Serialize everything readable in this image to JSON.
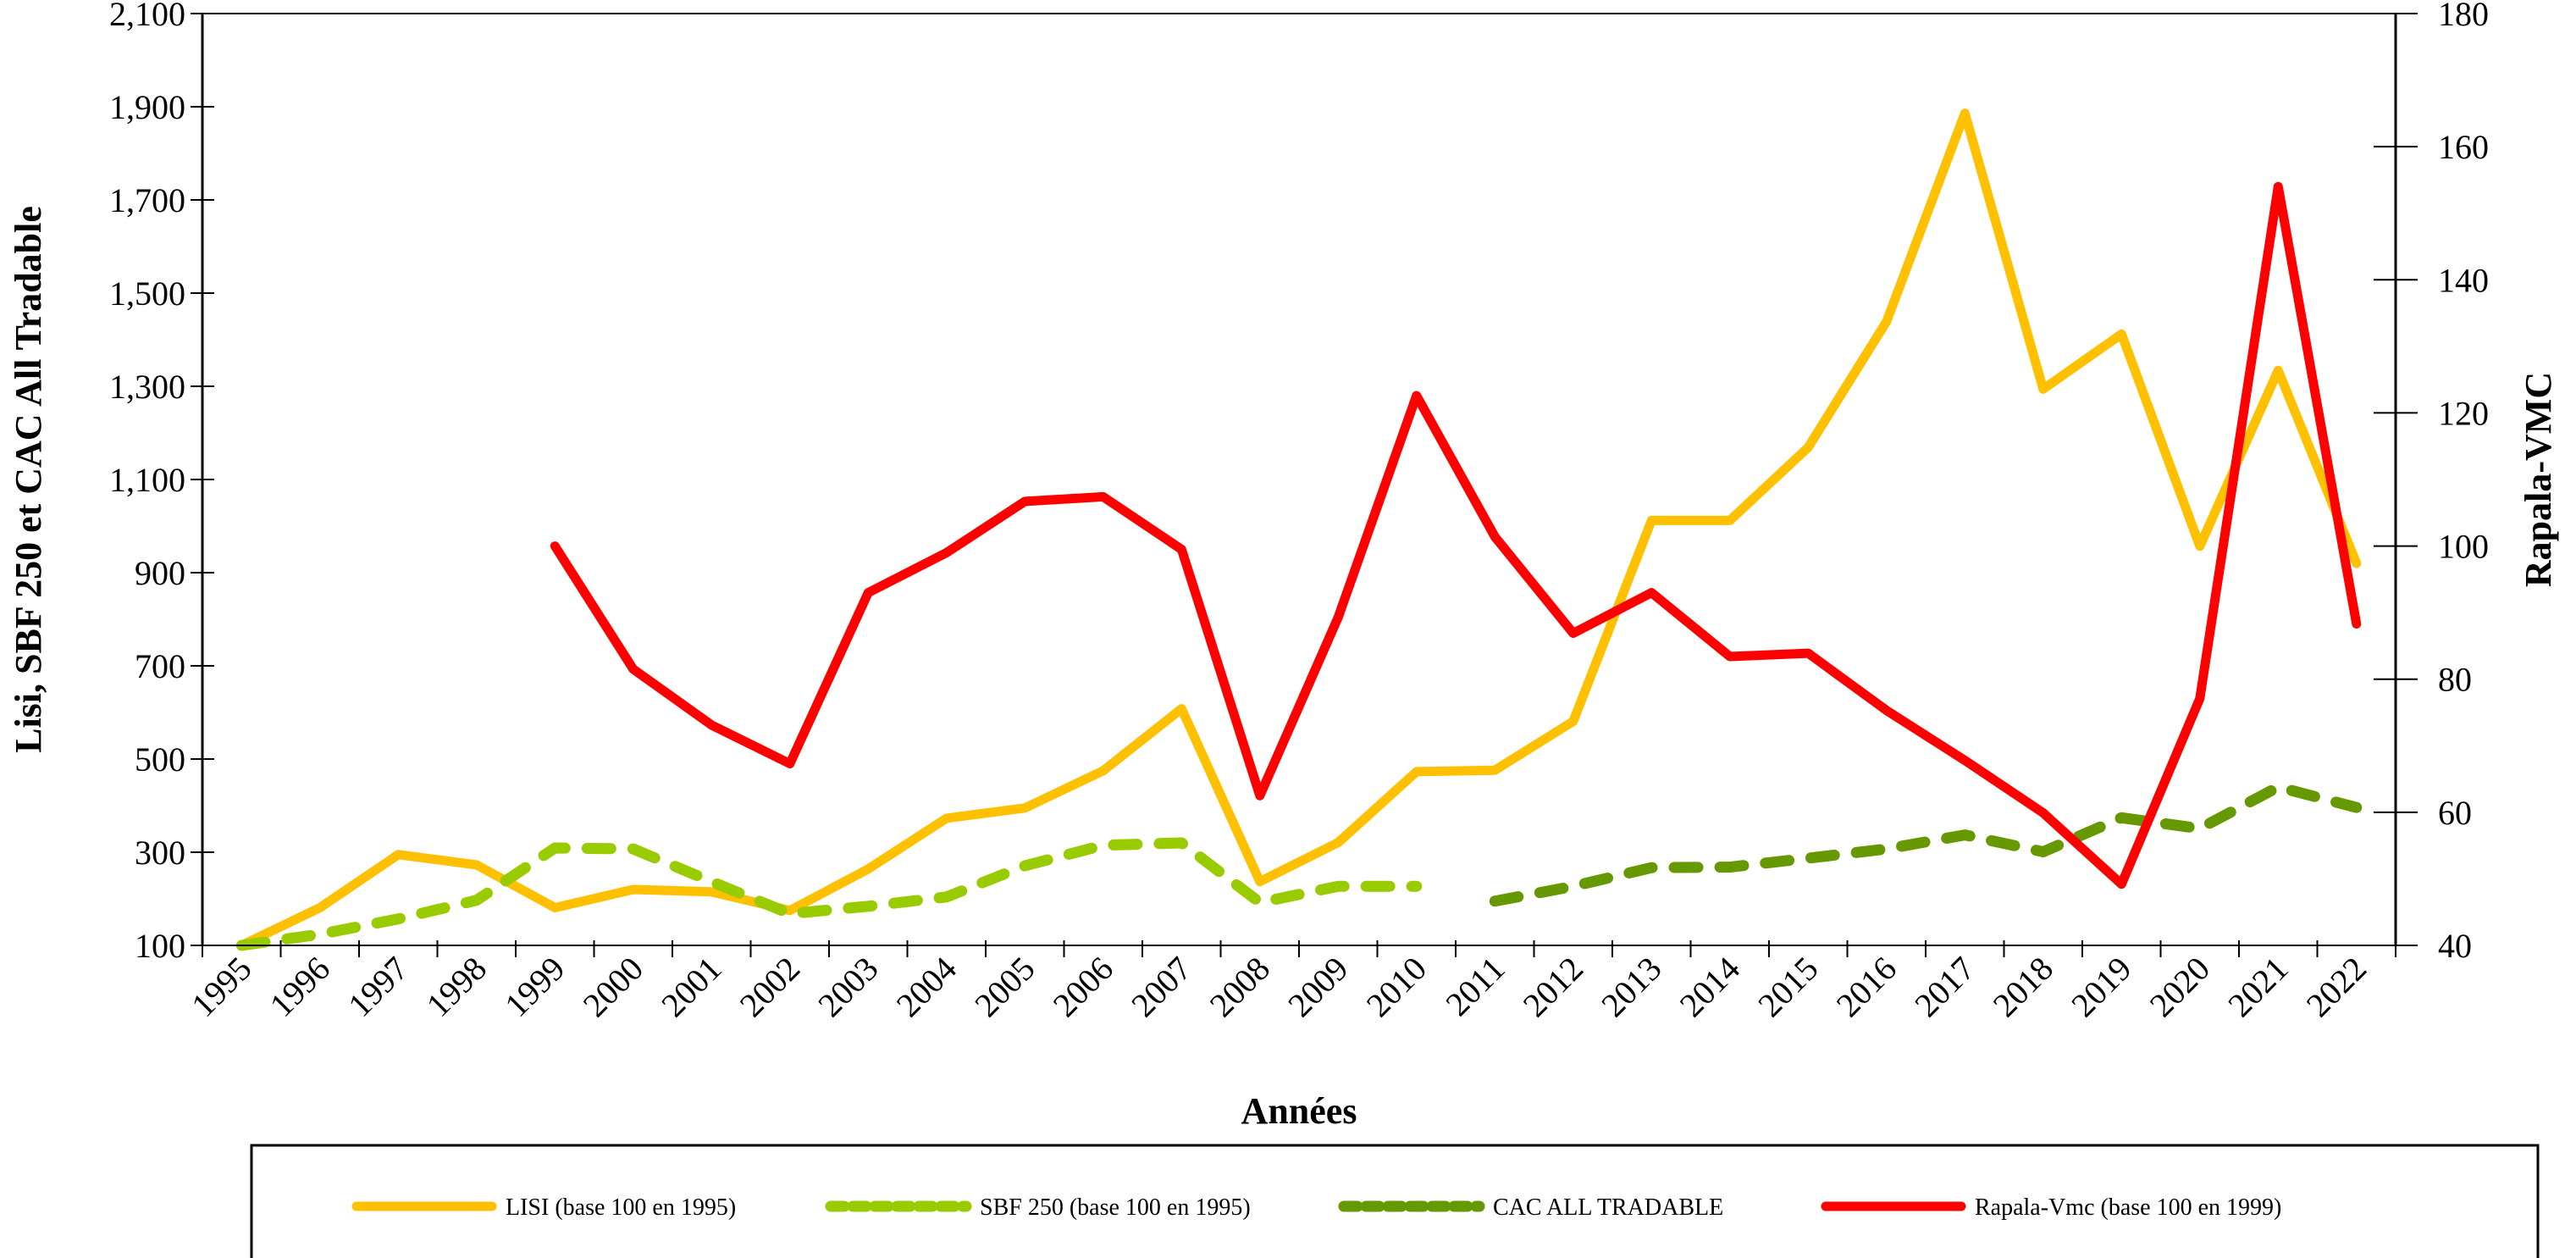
{
  "chart_data": {
    "type": "line",
    "title": "",
    "xlabel": "Années",
    "ylabel": "Lisi, SBF 250 et CAC All Tradable",
    "y2label": "Rapala-VMC",
    "ylim": [
      100,
      2100
    ],
    "y2lim": [
      40,
      180
    ],
    "yticks": [
      "100",
      "300",
      "500",
      "700",
      "900",
      "1,100",
      "1,300",
      "1,500",
      "1,700",
      "1,900",
      "2,100"
    ],
    "ytick_values": [
      100,
      300,
      500,
      700,
      900,
      1100,
      1300,
      1500,
      1700,
      1900,
      2100
    ],
    "y2ticks": [
      "40",
      "60",
      "80",
      "100",
      "120",
      "140",
      "160",
      "180"
    ],
    "y2tick_values": [
      40,
      60,
      80,
      100,
      120,
      140,
      160,
      180
    ],
    "categories": [
      "1995",
      "1996",
      "1997",
      "1998",
      "1999",
      "2000",
      "2001",
      "2002",
      "2003",
      "2004",
      "2005",
      "2006",
      "2007",
      "2008",
      "2009",
      "2010",
      "2011",
      "2012",
      "2013",
      "2014",
      "2015",
      "2016",
      "2017",
      "2018",
      "2019",
      "2020",
      "2021",
      "2022"
    ],
    "grid": false,
    "legend_position": "bottom",
    "series": [
      {
        "name": "LISI (base 100 en 1995)",
        "axis": "left",
        "color": "#FFC000",
        "style": "solid",
        "values": [
          100,
          181,
          295,
          273,
          181,
          220,
          215,
          175,
          264,
          373,
          395,
          475,
          608,
          237,
          321,
          473,
          476,
          581,
          1012,
          1012,
          1169,
          1439,
          1886,
          1294,
          1412,
          957,
          1334,
          920
        ]
      },
      {
        "name": "SBF 250 (base 100 en 1995)",
        "axis": "left",
        "color": "#99CC00",
        "style": "dashed",
        "values": [
          100,
          124,
          157,
          197,
          309,
          307,
          237,
          168,
          184,
          204,
          271,
          315,
          320,
          192,
          227,
          227,
          null,
          null,
          null,
          null,
          null,
          null,
          null,
          null,
          null,
          null,
          null,
          null
        ]
      },
      {
        "name": "CAC ALL TRADABLE",
        "axis": "left",
        "color": "#669900",
        "style": "dashed",
        "values": [
          null,
          null,
          null,
          null,
          null,
          null,
          null,
          null,
          null,
          null,
          null,
          null,
          null,
          null,
          null,
          null,
          195,
          227,
          267,
          268,
          287,
          307,
          337,
          301,
          374,
          351,
          440,
          396
        ]
      },
      {
        "name": "Rapala-Vmc (base 100 en 1999)",
        "axis": "right",
        "color": "#FF0000",
        "style": "solid",
        "values": [
          null,
          null,
          null,
          null,
          100,
          81.5,
          73.1,
          67.3,
          93,
          99,
          106.7,
          107.4,
          99.5,
          62.5,
          89.3,
          122.6,
          101.4,
          86.9,
          93,
          83.4,
          83.9,
          75.3,
          67.8,
          59.9,
          49.2,
          77.1,
          154,
          88.3
        ]
      }
    ]
  }
}
